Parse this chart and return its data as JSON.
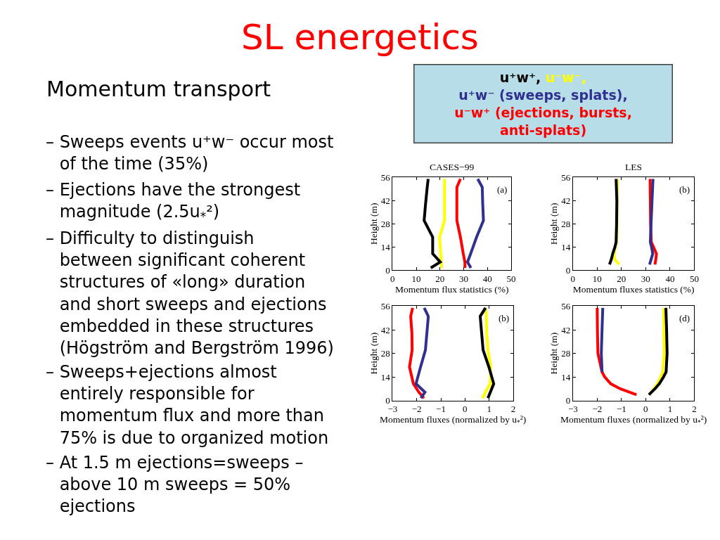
{
  "chart_data": [
    {
      "type": "other",
      "title": "SL energetics",
      "annotations": [
        "Momentum transport",
        "– Sweeps events u⁺w⁻ occur most\nof the time (35%)",
        "– Ejections have the strongest\nmagnitude (2.5u$_{*}$²)",
        "– Difficulty to distinguish\nbetween significant coherent\nstructures of «long» duration\nand short sweeps and ejections\nembedded in these structures\n(Högström and Bergström 1996)",
        "– Sweeps+ejections almost\nentirely responsible for\nmomentum flux and more than\n75% is due to organized motion",
        "– At 1.5 m ejections=sweeps –\nabove 10 m sweeps = 50%\nejections"
      ]
    },
    {
      "type": "line",
      "title": "CASES−99",
      "xlabel": "Momentum flux statistics (%)",
      "ylabel": "Height (m)",
      "annotations": [
        "(a)"
      ],
      "legend": "top",
      "xlim": [
        0,
        50
      ],
      "xticks": [
        0,
        10,
        20,
        30,
        40,
        50
      ],
      "ylim": [
        0,
        56
      ],
      "yticks": [
        0,
        14,
        28,
        42,
        56
      ],
      "series": [
        {
          "name": "u⁺w⁺,",
          "color": "#000000",
          "x": [
            15.0,
            14.6,
            13.9,
            13.3,
            16.9,
            16.9,
            20.1,
            16.1
          ],
          "values": [
            55,
            50,
            40,
            30,
            20,
            10,
            5,
            1.5
          ]
        },
        {
          "name": "u⁻w⁻,",
          "color": "#ffff00",
          "x": [
            21.9,
            21.9,
            21.9,
            21.9,
            19.8,
            20.3,
            20.5,
            20.8
          ],
          "values": [
            55,
            50,
            40,
            30,
            20,
            10,
            5,
            1.5
          ]
        },
        {
          "name": "u⁺w⁻ (sweeps, splats),",
          "color": "#303090",
          "x": [
            35.9,
            37.8,
            38.0,
            38.3,
            35.4,
            32.9,
            31.6,
            33.0
          ],
          "values": [
            55,
            50,
            40,
            30,
            20,
            10,
            5,
            1.5
          ]
        },
        {
          "name": "u⁻w⁺ (ejections, bursts, anti-splats)",
          "color": "#ff0000",
          "x": [
            28.6,
            27.1,
            27.1,
            27.1,
            28.6,
            29.8,
            30.5,
            30.5
          ],
          "values": [
            55,
            50,
            40,
            30,
            20,
            10,
            5,
            1.5
          ]
        }
      ]
    },
    {
      "type": "line",
      "title": "LES",
      "xlabel": "Momentum fluxes statistics (%)",
      "ylabel": "Height (m)",
      "annotations": [
        "(b)"
      ],
      "xlim": [
        0,
        50
      ],
      "xticks": [
        0,
        10,
        20,
        30,
        40,
        50
      ],
      "ylim": [
        0,
        56
      ],
      "yticks": [
        0,
        14,
        28,
        42,
        56
      ],
      "series": [
        {
          "color": "#000000",
          "x": [
            17.8,
            18.1,
            18.0,
            17.8,
            17.3,
            16.4,
            15.9,
            15.1
          ],
          "values": [
            55,
            42,
            28,
            17,
            14,
            10,
            7,
            3.5
          ]
        },
        {
          "color": "#ffff00",
          "x": [
            18.3,
            18.3,
            18.2,
            18.0,
            17.5,
            17.0,
            17.1,
            19.0
          ],
          "values": [
            55,
            42,
            28,
            17,
            14,
            10,
            7,
            3.5
          ]
        },
        {
          "color": "#303090",
          "x": [
            33.0,
            32.6,
            32.2,
            31.9,
            32.4,
            32.9,
            32.3,
            31.6
          ],
          "values": [
            55,
            42,
            28,
            17,
            14,
            10,
            7,
            3.5
          ]
        },
        {
          "color": "#ff0000",
          "x": [
            31.8,
            31.9,
            32.0,
            32.3,
            33.2,
            34.4,
            34.2,
            33.8
          ],
          "values": [
            55,
            42,
            28,
            17,
            14,
            10,
            7,
            3.5
          ]
        }
      ]
    },
    {
      "type": "line",
      "xlabel": "Momentum fluxes (normalized by u$_{*}$²)",
      "ylabel": "Height (m)",
      "annotations": [
        "(b)"
      ],
      "xlim": [
        -3,
        2
      ],
      "xticks": [
        -3,
        -2,
        -1,
        0,
        1,
        2
      ],
      "ylim": [
        0,
        56
      ],
      "yticks": [
        0,
        14,
        28,
        42,
        56
      ],
      "series": [
        {
          "color": "#000000",
          "x": [
            0.85,
            0.63,
            0.69,
            0.75,
            0.99,
            1.19,
            1.05,
            0.95
          ],
          "values": [
            55,
            50,
            40,
            30,
            20,
            10,
            5,
            1.5
          ]
        },
        {
          "color": "#ffff00",
          "x": [
            0.85,
            0.88,
            0.9,
            0.95,
            1.07,
            1.04,
            0.85,
            0.72
          ],
          "values": [
            55,
            50,
            40,
            30,
            20,
            10,
            5,
            1.5
          ]
        },
        {
          "color": "#303090",
          "x": [
            -1.69,
            -1.52,
            -1.58,
            -1.64,
            -1.84,
            -2.03,
            -1.66,
            -1.83
          ],
          "values": [
            55,
            50,
            40,
            30,
            20,
            10,
            5,
            1.5
          ]
        },
        {
          "color": "#ff0000",
          "x": [
            -2.17,
            -2.25,
            -2.2,
            -2.19,
            -2.3,
            -2.14,
            -1.91,
            -1.7
          ],
          "values": [
            55,
            50,
            40,
            30,
            20,
            10,
            5,
            1.5
          ]
        }
      ]
    },
    {
      "type": "line",
      "xlabel": "Momentum fluxes (normalized by u$_{*}$²)",
      "ylabel": "Height (m)",
      "annotations": [
        "(d)"
      ],
      "xlim": [
        -3,
        2
      ],
      "xticks": [
        -3,
        -2,
        -1,
        0,
        1,
        2
      ],
      "ylim": [
        0,
        56
      ],
      "yticks": [
        0,
        14,
        28,
        42,
        56
      ],
      "series": [
        {
          "color": "#000000",
          "x": [
            0.83,
            0.86,
            0.88,
            0.84,
            0.73,
            0.56,
            0.38,
            0.13
          ],
          "values": [
            55,
            42,
            28,
            17,
            14,
            10,
            7,
            3.5
          ]
        },
        {
          "color": "#ffff00",
          "x": [
            0.74,
            0.75,
            0.76,
            0.7,
            0.62,
            0.48,
            0.33,
            0.16
          ],
          "values": [
            55,
            42,
            28,
            17,
            14,
            10,
            7,
            3.5
          ]
        },
        {
          "color": "#303090",
          "x": [
            -1.77,
            -1.8,
            -1.83,
            -1.8
          ],
          "values": [
            55,
            42,
            28,
            17
          ]
        },
        {
          "color": "#ff0000",
          "x": [
            -2.0,
            -1.99,
            -1.97,
            -1.8,
            -1.69,
            -1.44,
            -1.05,
            -0.38
          ],
          "values": [
            55,
            42,
            28,
            17,
            14,
            10,
            7,
            3.5
          ]
        }
      ]
    }
  ]
}
